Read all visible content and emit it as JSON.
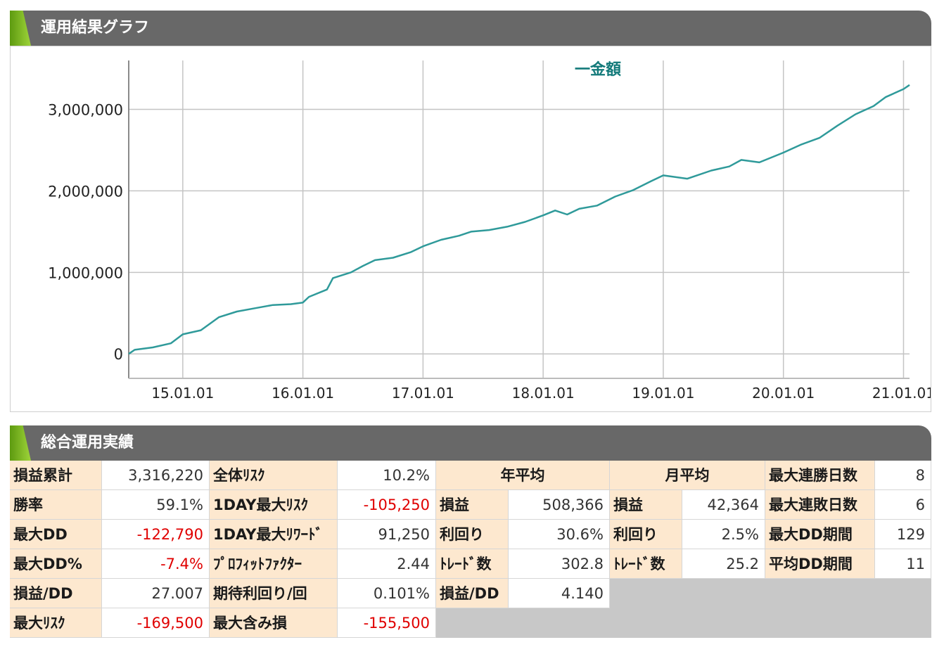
{
  "sections": {
    "graph_title": "運用結果グラフ",
    "perf_title": "総合運用実績"
  },
  "chart_data": {
    "type": "line",
    "legend": "一金額",
    "legend_position": "top-center",
    "grid": true,
    "ylim": [
      -300000,
      3600000
    ],
    "yticks": [
      0,
      1000000,
      2000000,
      3000000
    ],
    "ytick_labels": [
      "0",
      "1,000,000",
      "2,000,000",
      "3,000,000"
    ],
    "xlim": [
      2014.55,
      2021.05
    ],
    "xticks": [
      2015,
      2016,
      2017,
      2018,
      2019,
      2020,
      2021
    ],
    "xtick_labels": [
      "15.01.01",
      "16.01.01",
      "17.01.01",
      "18.01.01",
      "19.01.01",
      "20.01.01",
      "21.01.01"
    ],
    "line_color": "#2f9a9a",
    "series": [
      {
        "x": [
          2014.55,
          2014.6,
          2014.75,
          2014.9,
          2015.0,
          2015.15,
          2015.3,
          2015.45,
          2015.6,
          2015.75,
          2015.9,
          2016.0,
          2016.05,
          2016.2,
          2016.25,
          2016.4,
          2016.5,
          2016.6,
          2016.75,
          2016.9,
          2017.0,
          2017.15,
          2017.3,
          2017.4,
          2017.55,
          2017.7,
          2017.85,
          2018.0,
          2018.1,
          2018.2,
          2018.3,
          2018.45,
          2018.6,
          2018.75,
          2018.9,
          2019.0,
          2019.2,
          2019.4,
          2019.55,
          2019.65,
          2019.8,
          2020.0,
          2020.15,
          2020.3,
          2020.45,
          2020.6,
          2020.75,
          2020.85,
          2021.0,
          2021.05
        ],
        "y": [
          0,
          50000,
          80000,
          130000,
          240000,
          290000,
          450000,
          520000,
          560000,
          600000,
          610000,
          630000,
          700000,
          790000,
          930000,
          1000000,
          1080000,
          1150000,
          1180000,
          1250000,
          1320000,
          1400000,
          1450000,
          1500000,
          1520000,
          1560000,
          1620000,
          1700000,
          1760000,
          1710000,
          1780000,
          1820000,
          1930000,
          2010000,
          2120000,
          2190000,
          2150000,
          2250000,
          2300000,
          2380000,
          2350000,
          2470000,
          2570000,
          2650000,
          2800000,
          2940000,
          3040000,
          3150000,
          3250000,
          3300000
        ]
      }
    ]
  },
  "performance": {
    "col1": [
      {
        "label": "損益累計",
        "value": "3,316,220",
        "neg": false
      },
      {
        "label": "勝率",
        "value": "59.1%",
        "neg": false
      },
      {
        "label": "最大DD",
        "value": "-122,790",
        "neg": true
      },
      {
        "label": "最大DD%",
        "value": "-7.4%",
        "neg": true
      },
      {
        "label": "損益/DD",
        "value": "27.007",
        "neg": false
      },
      {
        "label": "最大ﾘｽｸ",
        "value": "-169,500",
        "neg": true
      }
    ],
    "col2": [
      {
        "label": "全体ﾘｽｸ",
        "value": "10.2%",
        "neg": false
      },
      {
        "label": "1DAY最大ﾘｽｸ",
        "value": "-105,250",
        "neg": true
      },
      {
        "label": "1DAY最大ﾘﾜｰﾄﾞ",
        "value": "91,250",
        "neg": false
      },
      {
        "label": "ﾌﾟﾛﾌｨｯﾄﾌｧｸﾀｰ",
        "value": "2.44",
        "neg": false
      },
      {
        "label": "期待利回り/回",
        "value": "0.101%",
        "neg": false
      },
      {
        "label": "最大含み損",
        "value": "-155,500",
        "neg": true
      }
    ],
    "yearly": {
      "header": "年平均",
      "rows": [
        {
          "label": "損益",
          "value": "508,366"
        },
        {
          "label": "利回り",
          "value": "30.6%"
        },
        {
          "label": "ﾄﾚｰﾄﾞ数",
          "value": "302.8"
        },
        {
          "label": "損益/DD",
          "value": "4.140"
        }
      ]
    },
    "monthly": {
      "header": "月平均",
      "rows": [
        {
          "label": "損益",
          "value": "42,364"
        },
        {
          "label": "利回り",
          "value": "2.5%"
        },
        {
          "label": "ﾄﾚｰﾄﾞ数",
          "value": "25.2"
        }
      ]
    },
    "streaks": [
      {
        "label": "最大連勝日数",
        "value": "8"
      },
      {
        "label": "最大連敗日数",
        "value": "6"
      },
      {
        "label": "最大DD期間",
        "value": "129"
      },
      {
        "label": "平均DD期間",
        "value": "11"
      }
    ]
  }
}
